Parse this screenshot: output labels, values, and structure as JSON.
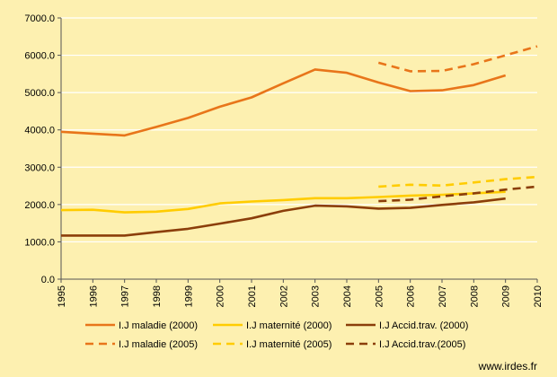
{
  "chart_data": {
    "type": "line",
    "title": "",
    "xlabel": "",
    "ylabel": "",
    "x": [
      1995,
      1996,
      1997,
      1998,
      1999,
      2000,
      2001,
      2002,
      2003,
      2004,
      2005,
      2006,
      2007,
      2008,
      2009,
      2010
    ],
    "x_tick_labels": [
      "1995",
      "1996",
      "1997",
      "1998",
      "1999",
      "2000",
      "2001",
      "2002",
      "2003",
      "2004",
      "2005",
      "2006",
      "2007",
      "2008",
      "2009",
      "2010"
    ],
    "ylim": [
      0,
      7000
    ],
    "y_ticks": [
      0,
      1000,
      2000,
      3000,
      4000,
      5000,
      6000,
      7000
    ],
    "y_tick_labels": [
      "0.0",
      "1000.0",
      "2000.0",
      "3000.0",
      "4000.0",
      "5000.0",
      "6000.0",
      "7000.0"
    ],
    "grid": "horizontal",
    "legend_position": "bottom",
    "series": [
      {
        "name": "I.J maladie (2000)",
        "color": "#e8751a",
        "dash": false,
        "x": [
          1995,
          1996,
          1997,
          1998,
          1999,
          2000,
          2001,
          2002,
          2003,
          2004,
          2005,
          2006,
          2007,
          2008,
          2009
        ],
        "values": [
          3950,
          3900,
          3850,
          4080,
          4320,
          4620,
          4870,
          5250,
          5620,
          5530,
          5270,
          5040,
          5060,
          5200,
          5460
        ]
      },
      {
        "name": "I.J maternité (2000)",
        "color": "#ffcc00",
        "dash": false,
        "x": [
          1995,
          1996,
          1997,
          1998,
          1999,
          2000,
          2001,
          2002,
          2003,
          2004,
          2005,
          2006,
          2007,
          2008,
          2009
        ],
        "values": [
          1850,
          1860,
          1790,
          1810,
          1880,
          2030,
          2080,
          2120,
          2170,
          2170,
          2200,
          2240,
          2260,
          2300,
          2340
        ]
      },
      {
        "name": "I.J Accid.trav. (2000)",
        "color": "#8b3e0a",
        "dash": false,
        "x": [
          1995,
          1996,
          1997,
          1998,
          1999,
          2000,
          2001,
          2002,
          2003,
          2004,
          2005,
          2006,
          2007,
          2008,
          2009
        ],
        "values": [
          1170,
          1170,
          1170,
          1260,
          1350,
          1490,
          1630,
          1830,
          1970,
          1950,
          1890,
          1910,
          1990,
          2060,
          2160
        ]
      },
      {
        "name": "I.J maladie (2005)",
        "color": "#e8751a",
        "dash": true,
        "x": [
          2005,
          2006,
          2007,
          2008,
          2009,
          2010
        ],
        "values": [
          5800,
          5570,
          5580,
          5760,
          6000,
          6240
        ]
      },
      {
        "name": "I.J maternité (2005)",
        "color": "#ffcc00",
        "dash": true,
        "x": [
          2005,
          2006,
          2007,
          2008,
          2009,
          2010
        ],
        "values": [
          2480,
          2530,
          2510,
          2590,
          2680,
          2740
        ]
      },
      {
        "name": "I.J Accid.trav.(2005)",
        "color": "#8b3e0a",
        "dash": true,
        "x": [
          2005,
          2006,
          2007,
          2008,
          2009,
          2010
        ],
        "values": [
          2090,
          2130,
          2220,
          2300,
          2400,
          2480
        ]
      }
    ],
    "credit": "www.irdes.fr"
  }
}
